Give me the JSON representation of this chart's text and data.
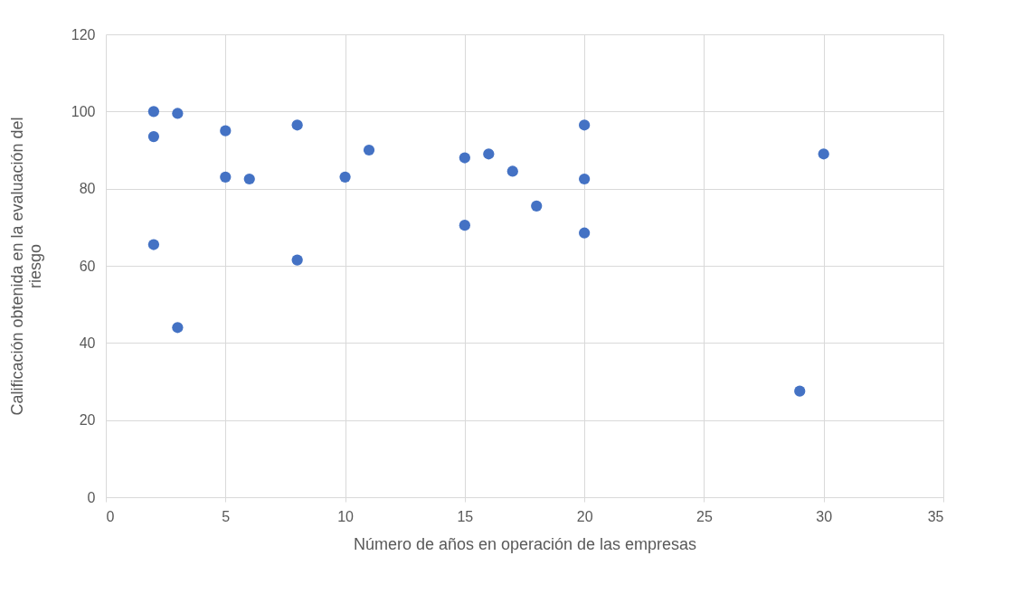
{
  "chart_data": {
    "type": "scatter",
    "xlabel": "Número de años en operación de las empresas",
    "ylabel": "Calificación obtenida en la evaluación del riesgo",
    "x": [
      2,
      2,
      2,
      3,
      3,
      5,
      5,
      6,
      8,
      8,
      10,
      11,
      15,
      15,
      16,
      17,
      18,
      20,
      20,
      20,
      29,
      30
    ],
    "series": [
      {
        "color": "#4472c4",
        "values": [
          100,
          93.5,
          65.5,
          99.5,
          44,
          95,
          83,
          82.5,
          96.5,
          61.5,
          83,
          90,
          88,
          70.5,
          89,
          84.5,
          75.5,
          96.5,
          82.5,
          68.5,
          27.5,
          89
        ]
      }
    ],
    "xlim": [
      0,
      35
    ],
    "xticks": [
      0,
      5,
      10,
      15,
      20,
      25,
      30,
      35
    ],
    "ylim": [
      0,
      120
    ],
    "yticks": [
      0,
      20,
      40,
      60,
      80,
      100,
      120
    ],
    "grid": true,
    "marker": "circle",
    "legend": false
  }
}
